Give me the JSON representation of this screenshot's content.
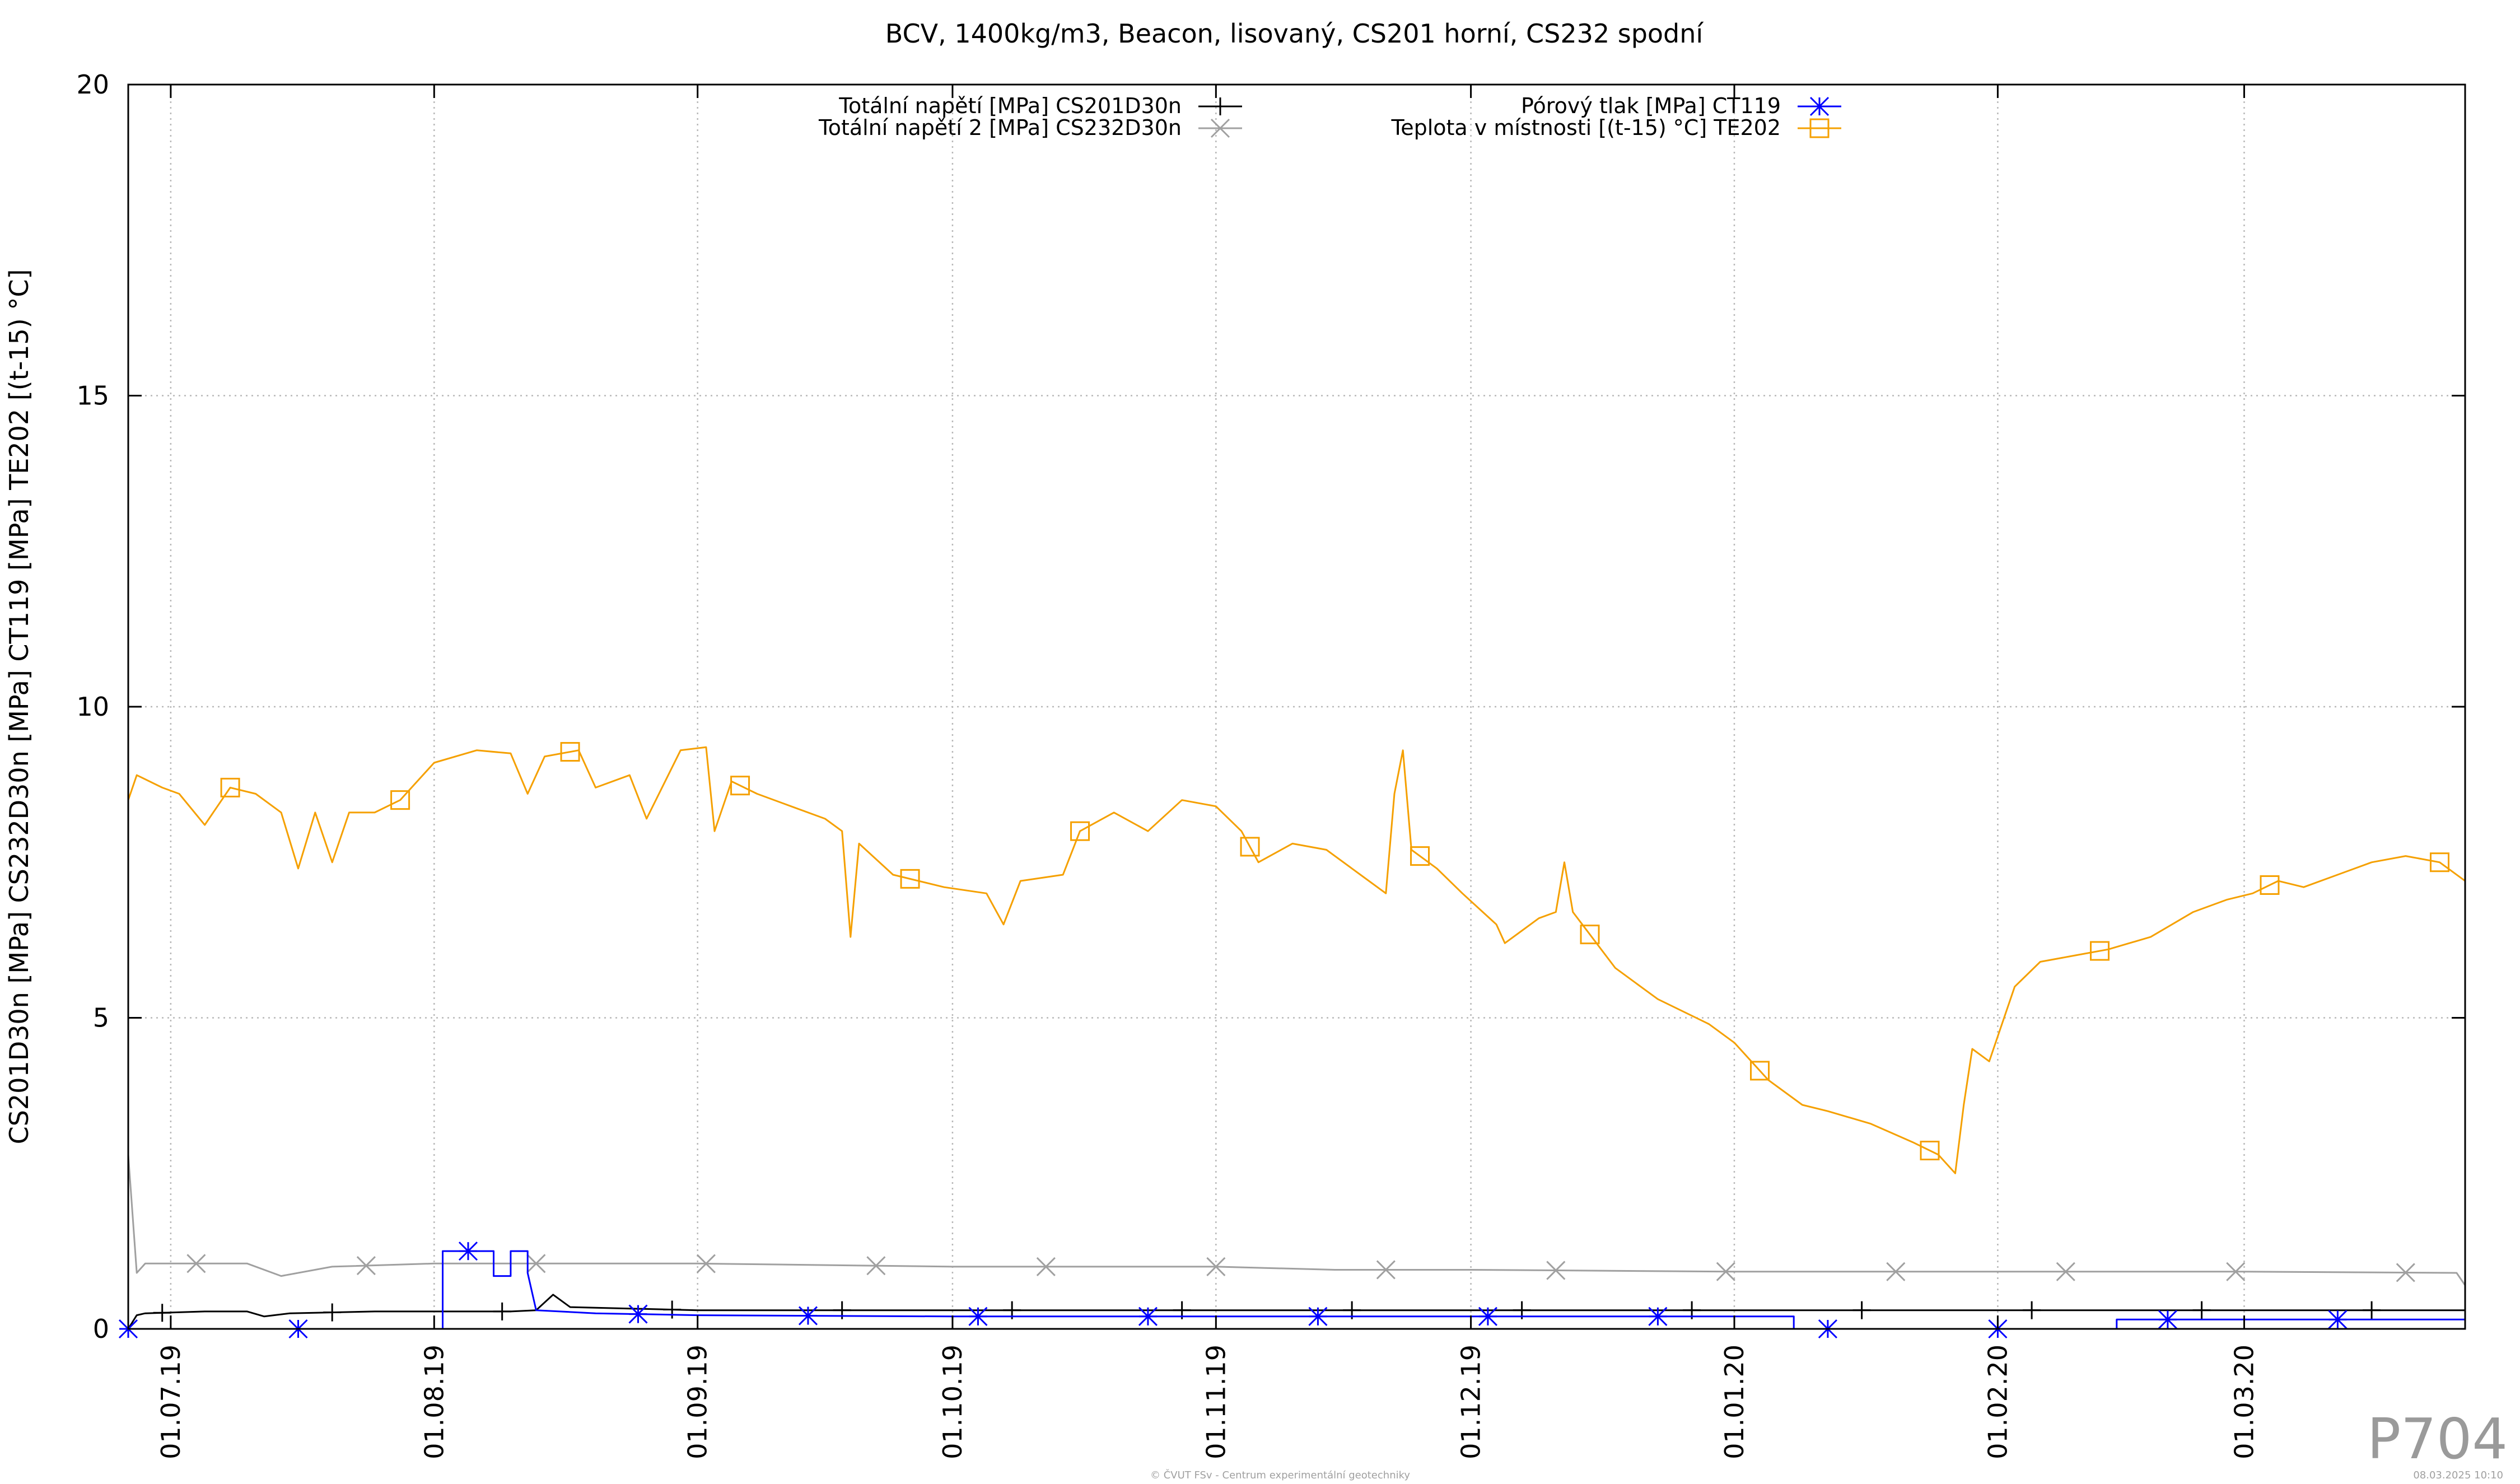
{
  "chart_data": {
    "type": "line",
    "title": "BCV, 1400kg/m3, Beacon, lisovaný, CS201 horní, CS232 spodní",
    "ylabel": "CS201D30n [MPa] CS232D30n [MPa] CT119 [MPa] TE202 [(t-15) °C]",
    "xlabel": "",
    "x_range": [
      "2019-06-26",
      "2020-03-27"
    ],
    "ylim": [
      0,
      20
    ],
    "y_ticks": [
      "0",
      "5",
      "10",
      "15",
      "20"
    ],
    "x_ticks": [
      {
        "date": "2019-07-01",
        "label": "01.07.19"
      },
      {
        "date": "2019-08-01",
        "label": "01.08.19"
      },
      {
        "date": "2019-09-01",
        "label": "01.09.19"
      },
      {
        "date": "2019-10-01",
        "label": "01.10.19"
      },
      {
        "date": "2019-11-01",
        "label": "01.11.19"
      },
      {
        "date": "2019-12-01",
        "label": "01.12.19"
      },
      {
        "date": "2020-01-01",
        "label": "01.01.20"
      },
      {
        "date": "2020-02-01",
        "label": "01.02.20"
      },
      {
        "date": "2020-03-01",
        "label": "01.03.20"
      }
    ],
    "grid": true,
    "legend_position": "top",
    "series": [
      {
        "name": "Totální napětí [MPa] CS201D30n",
        "color": "#000000",
        "marker": "plus",
        "points": [
          [
            "2019-06-26",
            0.0
          ],
          [
            "2019-06-27",
            0.22
          ],
          [
            "2019-06-28",
            0.25
          ],
          [
            "2019-07-05",
            0.28
          ],
          [
            "2019-07-10",
            0.28
          ],
          [
            "2019-07-12",
            0.2
          ],
          [
            "2019-07-15",
            0.25
          ],
          [
            "2019-07-25",
            0.28
          ],
          [
            "2019-08-10",
            0.28
          ],
          [
            "2019-08-13",
            0.3
          ],
          [
            "2019-08-15",
            0.55
          ],
          [
            "2019-08-17",
            0.35
          ],
          [
            "2019-09-01",
            0.3
          ],
          [
            "2019-10-01",
            0.3
          ],
          [
            "2019-11-01",
            0.3
          ],
          [
            "2019-12-01",
            0.3
          ],
          [
            "2020-01-01",
            0.3
          ],
          [
            "2020-02-01",
            0.3
          ],
          [
            "2020-03-27",
            0.3
          ]
        ]
      },
      {
        "name": "Totální napětí 2 [MPa] CS232D30n",
        "color": "#a0a0a0",
        "marker": "cross",
        "points": [
          [
            "2019-06-26",
            2.8
          ],
          [
            "2019-06-27",
            0.9
          ],
          [
            "2019-06-28",
            1.05
          ],
          [
            "2019-07-10",
            1.05
          ],
          [
            "2019-07-14",
            0.85
          ],
          [
            "2019-07-20",
            1.0
          ],
          [
            "2019-08-01",
            1.05
          ],
          [
            "2019-08-15",
            1.05
          ],
          [
            "2019-09-01",
            1.05
          ],
          [
            "2019-10-01",
            1.0
          ],
          [
            "2019-11-01",
            1.0
          ],
          [
            "2019-11-15",
            0.95
          ],
          [
            "2019-12-01",
            0.95
          ],
          [
            "2020-01-01",
            0.92
          ],
          [
            "2020-02-01",
            0.92
          ],
          [
            "2020-03-01",
            0.92
          ],
          [
            "2020-03-26",
            0.9
          ],
          [
            "2020-03-27",
            0.7
          ]
        ]
      },
      {
        "name": "Pórový tlak [MPa] CT119",
        "color": "#0000ff",
        "marker": "star",
        "points": [
          [
            "2019-06-26",
            0.0
          ],
          [
            "2019-08-02",
            0.0
          ],
          [
            "2019-08-02",
            1.25
          ],
          [
            "2019-08-08",
            1.25
          ],
          [
            "2019-08-08",
            0.85
          ],
          [
            "2019-08-10",
            0.85
          ],
          [
            "2019-08-10",
            1.25
          ],
          [
            "2019-08-12",
            1.25
          ],
          [
            "2019-08-12",
            0.9
          ],
          [
            "2019-08-13",
            0.3
          ],
          [
            "2019-08-20",
            0.25
          ],
          [
            "2019-09-01",
            0.22
          ],
          [
            "2019-10-01",
            0.2
          ],
          [
            "2019-11-01",
            0.2
          ],
          [
            "2019-12-01",
            0.2
          ],
          [
            "2020-01-01",
            0.2
          ],
          [
            "2020-01-08",
            0.2
          ],
          [
            "2020-01-08",
            0.0
          ],
          [
            "2020-02-15",
            0.0
          ],
          [
            "2020-02-15",
            0.15
          ],
          [
            "2020-03-27",
            0.15
          ]
        ]
      },
      {
        "name": "Teplota v místnosti [(t-15) °C] TE202",
        "color": "#f5a000",
        "marker": "square",
        "points": [
          [
            "2019-06-26",
            8.5
          ],
          [
            "2019-06-27",
            8.9
          ],
          [
            "2019-06-30",
            8.7
          ],
          [
            "2019-07-02",
            8.6
          ],
          [
            "2019-07-05",
            8.1
          ],
          [
            "2019-07-08",
            8.7
          ],
          [
            "2019-07-11",
            8.6
          ],
          [
            "2019-07-14",
            8.3
          ],
          [
            "2019-07-16",
            7.4
          ],
          [
            "2019-07-18",
            8.3
          ],
          [
            "2019-07-20",
            7.5
          ],
          [
            "2019-07-22",
            8.3
          ],
          [
            "2019-07-25",
            8.3
          ],
          [
            "2019-07-28",
            8.5
          ],
          [
            "2019-08-01",
            9.1
          ],
          [
            "2019-08-06",
            9.3
          ],
          [
            "2019-08-10",
            9.25
          ],
          [
            "2019-08-12",
            8.6
          ],
          [
            "2019-08-14",
            9.2
          ],
          [
            "2019-08-18",
            9.3
          ],
          [
            "2019-08-20",
            8.7
          ],
          [
            "2019-08-24",
            8.9
          ],
          [
            "2019-08-26",
            8.2
          ],
          [
            "2019-08-30",
            9.3
          ],
          [
            "2019-09-02",
            9.35
          ],
          [
            "2019-09-03",
            8.0
          ],
          [
            "2019-09-05",
            8.8
          ],
          [
            "2019-09-08",
            8.6
          ],
          [
            "2019-09-12",
            8.4
          ],
          [
            "2019-09-16",
            8.2
          ],
          [
            "2019-09-18",
            8.0
          ],
          [
            "2019-09-19",
            6.3
          ],
          [
            "2019-09-20",
            7.8
          ],
          [
            "2019-09-24",
            7.3
          ],
          [
            "2019-09-30",
            7.1
          ],
          [
            "2019-10-05",
            7.0
          ],
          [
            "2019-10-07",
            6.5
          ],
          [
            "2019-10-09",
            7.2
          ],
          [
            "2019-10-14",
            7.3
          ],
          [
            "2019-10-16",
            8.0
          ],
          [
            "2019-10-20",
            8.3
          ],
          [
            "2019-10-24",
            8.0
          ],
          [
            "2019-10-28",
            8.5
          ],
          [
            "2019-11-01",
            8.4
          ],
          [
            "2019-11-04",
            8.0
          ],
          [
            "2019-11-06",
            7.5
          ],
          [
            "2019-11-10",
            7.8
          ],
          [
            "2019-11-14",
            7.7
          ],
          [
            "2019-11-18",
            7.3
          ],
          [
            "2019-11-21",
            7.0
          ],
          [
            "2019-11-22",
            8.6
          ],
          [
            "2019-11-23",
            9.3
          ],
          [
            "2019-11-24",
            7.7
          ],
          [
            "2019-11-27",
            7.4
          ],
          [
            "2019-11-30",
            7.0
          ],
          [
            "2019-12-04",
            6.5
          ],
          [
            "2019-12-05",
            6.2
          ],
          [
            "2019-12-07",
            6.4
          ],
          [
            "2019-12-09",
            6.6
          ],
          [
            "2019-12-11",
            6.7
          ],
          [
            "2019-12-12",
            7.5
          ],
          [
            "2019-12-13",
            6.7
          ],
          [
            "2019-12-18",
            5.8
          ],
          [
            "2019-12-23",
            5.3
          ],
          [
            "2019-12-29",
            4.9
          ],
          [
            "2020-01-01",
            4.6
          ],
          [
            "2020-01-05",
            4.0
          ],
          [
            "2020-01-09",
            3.6
          ],
          [
            "2020-01-12",
            3.5
          ],
          [
            "2020-01-17",
            3.3
          ],
          [
            "2020-01-22",
            3.0
          ],
          [
            "2020-01-25",
            2.8
          ],
          [
            "2020-01-27",
            2.5
          ],
          [
            "2020-01-28",
            3.6
          ],
          [
            "2020-01-29",
            4.5
          ],
          [
            "2020-01-31",
            4.3
          ],
          [
            "2020-02-03",
            5.5
          ],
          [
            "2020-02-06",
            5.9
          ],
          [
            "2020-02-10",
            6.0
          ],
          [
            "2020-02-14",
            6.1
          ],
          [
            "2020-02-19",
            6.3
          ],
          [
            "2020-02-24",
            6.7
          ],
          [
            "2020-02-28",
            6.9
          ],
          [
            "2020-03-02",
            7.0
          ],
          [
            "2020-03-05",
            7.2
          ],
          [
            "2020-03-08",
            7.1
          ],
          [
            "2020-03-12",
            7.3
          ],
          [
            "2020-03-16",
            7.5
          ],
          [
            "2020-03-20",
            7.6
          ],
          [
            "2020-03-24",
            7.5
          ],
          [
            "2020-03-27",
            7.2
          ]
        ]
      }
    ]
  },
  "watermark": "P704",
  "footer": {
    "credit": "© ČVUT FSv - Centrum experimentální geotechniky",
    "timestamp": "08.03.2025 10:10"
  }
}
